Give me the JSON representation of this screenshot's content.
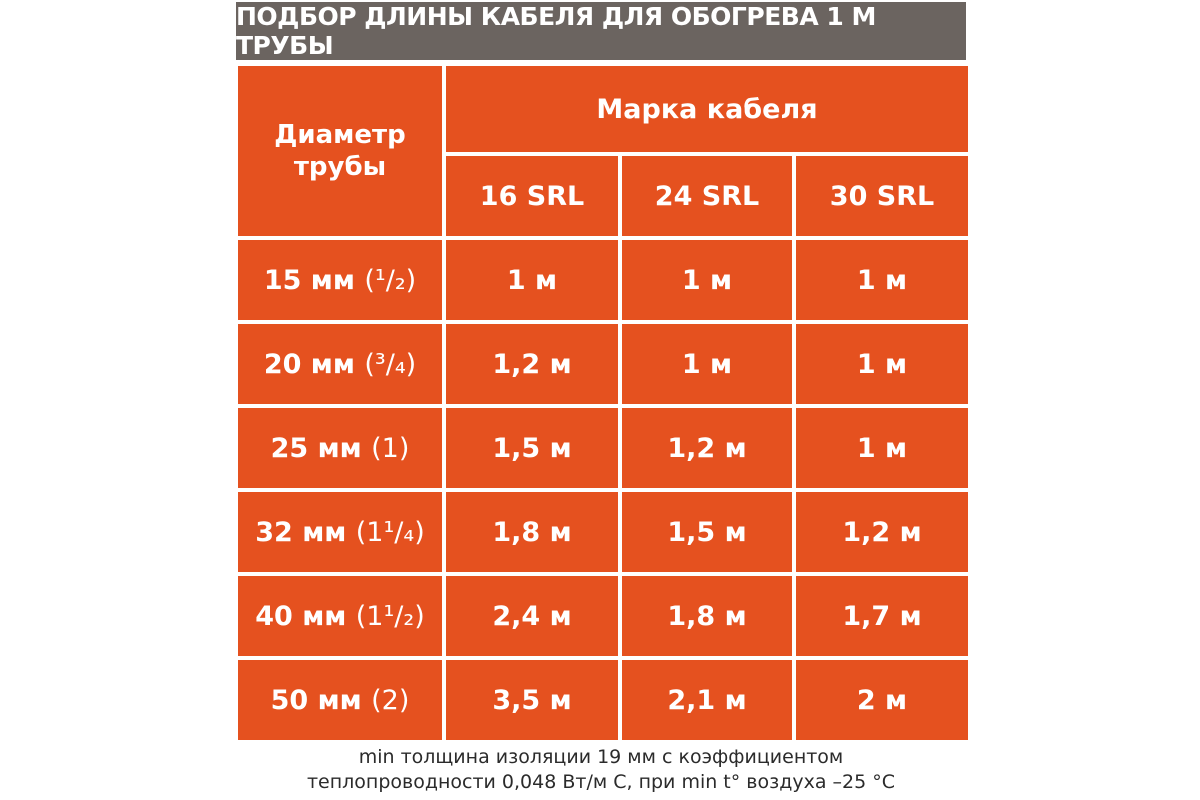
{
  "title": "ПОДБОР ДЛИНЫ КАБЕЛЯ ДЛЯ ОБОГРЕВА 1 М ТРУБЫ",
  "colors": {
    "title_bg": "#6b6460",
    "cell_bg": "#e5511f",
    "text": "#ffffff"
  },
  "table": {
    "row_header": "Диаметр трубы",
    "group_header": "Марка кабеля",
    "columns": [
      "16 SRL",
      "24 SRL",
      "30 SRL"
    ],
    "rows": [
      {
        "diameter": "15 мм",
        "inch": "(¹/₂)",
        "values": [
          "1 м",
          "1 м",
          "1 м"
        ]
      },
      {
        "diameter": "20 мм",
        "inch": "(³/₄)",
        "values": [
          "1,2 м",
          "1 м",
          "1 м"
        ]
      },
      {
        "diameter": "25 мм",
        "inch": "(1)",
        "values": [
          "1,5 м",
          "1,2 м",
          "1 м"
        ]
      },
      {
        "diameter": "32 мм",
        "inch": "(1¹/₄)",
        "values": [
          "1,8 м",
          "1,5 м",
          "1,2 м"
        ]
      },
      {
        "diameter": "40 мм",
        "inch": "(1¹/₂)",
        "values": [
          "2,4 м",
          "1,8 м",
          "1,7 м"
        ]
      },
      {
        "diameter": "50 мм",
        "inch": "(2)",
        "values": [
          "3,5 м",
          "2,1 м",
          "2 м"
        ]
      }
    ]
  },
  "note": {
    "line1": "min толщина изоляции 19 мм с коэффициентом",
    "line2": "теплопроводности 0,048 Вт/м С, при min t° воздуха –25 °С"
  }
}
